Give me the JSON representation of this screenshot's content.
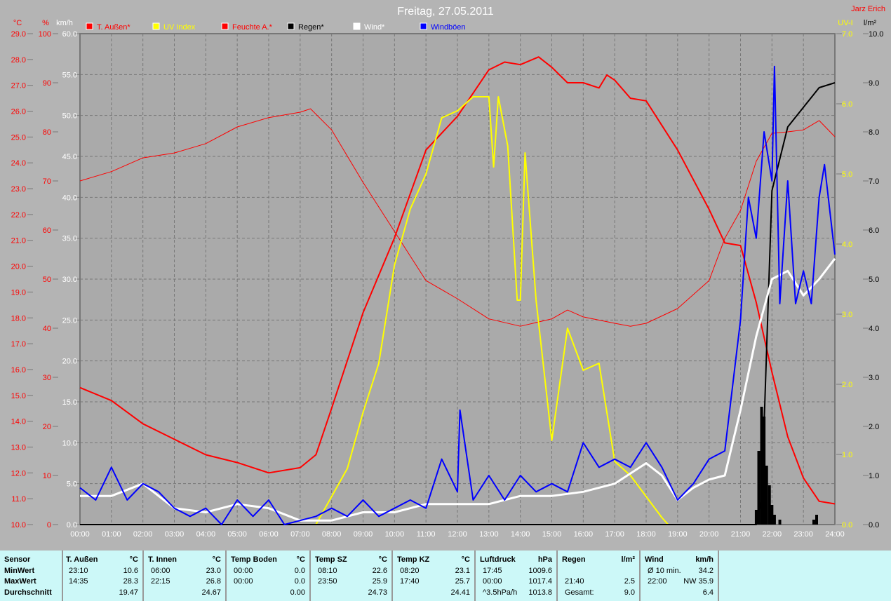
{
  "title": "Freitag, 27.05.2011",
  "user": "Jarz Erich",
  "legend": [
    {
      "label": "T. Außen*",
      "color": "#ff0000"
    },
    {
      "label": "UV Index",
      "color": "#ffff00"
    },
    {
      "label": "Feuchte A.*",
      "color": "#ff0000"
    },
    {
      "label": "Regen*",
      "color": "#000000"
    },
    {
      "label": "Wind*",
      "color": "#ffffff"
    },
    {
      "label": "Windböen",
      "color": "#0000ff"
    }
  ],
  "axes": {
    "temp_unit": "°C",
    "hum_unit": "%",
    "wind_unit": "km/h",
    "uv_unit": "UV-I",
    "rain_unit": "l/m²"
  },
  "chart_data": {
    "type": "line",
    "title": "Freitag, 27.05.2011",
    "x_ticks": [
      "00:00",
      "01:00",
      "02:00",
      "03:00",
      "04:00",
      "05:00",
      "06:00",
      "07:00",
      "08:00",
      "09:00",
      "10:00",
      "11:00",
      "12:00",
      "13:00",
      "14:00",
      "15:00",
      "16:00",
      "17:00",
      "18:00",
      "19:00",
      "20:00",
      "21:00",
      "22:00",
      "23:00",
      "24:00"
    ],
    "xlim": [
      0,
      24
    ],
    "axes_ranges": {
      "temp": [
        10,
        29
      ],
      "hum": [
        0,
        100
      ],
      "wind": [
        0,
        60
      ],
      "uv": [
        0,
        7
      ],
      "rain": [
        0,
        10
      ]
    },
    "grid": true,
    "series": [
      {
        "name": "T. Außen*",
        "axis": "temp",
        "color": "#ff0000",
        "width": 2,
        "x": [
          0,
          1,
          2,
          3,
          4,
          5,
          6,
          7,
          7.5,
          8,
          9,
          10,
          11,
          12,
          13,
          13.5,
          14,
          14.58,
          15,
          15.5,
          16,
          16.5,
          16.75,
          17,
          17.5,
          18,
          19,
          20,
          20.5,
          21,
          21.5,
          22,
          22.5,
          23,
          23.5,
          24
        ],
        "y": [
          15.3,
          14.8,
          13.9,
          13.3,
          12.7,
          12.4,
          12.0,
          12.2,
          12.7,
          14.5,
          18.2,
          21.1,
          24.5,
          25.8,
          27.6,
          27.9,
          27.8,
          28.1,
          27.7,
          27.1,
          27.1,
          26.9,
          27.4,
          27.2,
          26.5,
          26.4,
          24.5,
          22.2,
          20.9,
          20.8,
          18.6,
          15.9,
          13.4,
          11.8,
          10.9,
          10.8
        ]
      },
      {
        "name": "Feuchte A.*",
        "axis": "hum",
        "color": "#ff0000",
        "width": 1,
        "x": [
          0,
          1,
          2,
          3,
          4,
          5,
          6,
          7,
          7.33,
          8,
          9,
          10,
          11,
          12,
          13,
          14,
          15,
          15.5,
          16,
          17,
          17.5,
          18,
          19,
          20,
          20.5,
          21,
          21.5,
          22,
          22.5,
          23,
          23.5,
          24
        ],
        "y": [
          70,
          71.9,
          74.7,
          75.7,
          77.6,
          81,
          82.9,
          84,
          84.7,
          80.4,
          69.7,
          59.7,
          49.7,
          46,
          41.9,
          40.4,
          41.9,
          43.7,
          42.3,
          41,
          40.4,
          41,
          44,
          49.7,
          58.3,
          64,
          74,
          79.7,
          80,
          80.4,
          82.3,
          79
        ]
      },
      {
        "name": "UV Index",
        "axis": "uv",
        "color": "#ffff00",
        "width": 2,
        "x": [
          7.5,
          8,
          8.5,
          9,
          9.5,
          10,
          10.5,
          11,
          11.5,
          12,
          12.5,
          13,
          13.15,
          13.3,
          13.6,
          13.9,
          14,
          14.15,
          14.5,
          15,
          15.5,
          16,
          16.5,
          17,
          17.5,
          18,
          18.5,
          18.7
        ],
        "y": [
          0,
          0.4,
          0.8,
          1.6,
          2.3,
          3.7,
          4.5,
          5.0,
          5.8,
          5.9,
          6.1,
          6.1,
          5.1,
          6.1,
          5.4,
          3.2,
          3.2,
          5.3,
          3.2,
          1.2,
          2.8,
          2.2,
          2.3,
          0.9,
          0.7,
          0.4,
          0.1,
          0
        ]
      },
      {
        "name": "Regen*",
        "axis": "rain",
        "color": "#000000",
        "width": 2,
        "x": [
          0,
          21.5,
          21.67,
          22,
          22.5,
          23,
          23.5,
          24
        ],
        "y": [
          0,
          0,
          0.5,
          6.8,
          8.1,
          8.5,
          8.9,
          9.0
        ]
      },
      {
        "name": "Wind*",
        "axis": "wind",
        "color": "#ffffff",
        "width": 3,
        "x": [
          0,
          1,
          2,
          3,
          4,
          5,
          6,
          7,
          8,
          9,
          10,
          11,
          12,
          13,
          14,
          15,
          16,
          17,
          18,
          18.5,
          19,
          19.5,
          20,
          20.5,
          21,
          21.5,
          22,
          22.5,
          23,
          23.5,
          24
        ],
        "y": [
          3.5,
          3.5,
          5,
          2,
          1.5,
          2.5,
          2,
          0.5,
          0.5,
          1.5,
          1.5,
          2.5,
          2.5,
          2.5,
          3.5,
          3.5,
          4,
          5,
          7.5,
          6,
          3,
          4.5,
          5.5,
          6,
          14,
          23,
          30,
          31,
          28,
          30,
          32.5
        ]
      },
      {
        "name": "Windböen",
        "axis": "wind",
        "color": "#0000ff",
        "width": 2,
        "x": [
          0,
          0.5,
          1,
          1.5,
          2,
          2.5,
          3,
          3.5,
          4,
          4.5,
          5,
          5.5,
          6,
          6.5,
          7,
          7.5,
          8,
          8.5,
          9,
          9.5,
          10,
          10.5,
          11,
          11.5,
          12,
          12.08,
          12.5,
          13,
          13.5,
          14,
          14.5,
          15,
          15.5,
          16,
          16.5,
          17,
          17.5,
          18,
          18.5,
          19,
          19.5,
          20,
          20.5,
          21,
          21.25,
          21.5,
          21.75,
          22,
          22.08,
          22.25,
          22.5,
          22.75,
          23,
          23.25,
          23.5,
          23.67,
          24
        ],
        "y": [
          4.5,
          3,
          7,
          3,
          5,
          4,
          2,
          1,
          2,
          0,
          3,
          1,
          3,
          0,
          0.5,
          1,
          2,
          1,
          3,
          1,
          2,
          3,
          2,
          8,
          4,
          14,
          3,
          6,
          3,
          6,
          4,
          5,
          4,
          10,
          7,
          8,
          7,
          10,
          7,
          3,
          5,
          8,
          9,
          25,
          40,
          35,
          48,
          42,
          56,
          27,
          42,
          27,
          31,
          27,
          40,
          44,
          33
        ]
      }
    ],
    "bars": {
      "name": "Regen (Intervall)",
      "axis": "rain",
      "color": "#000000",
      "x": [
        21.5,
        21.58,
        21.67,
        21.75,
        21.83,
        21.92,
        22.0,
        22.08,
        22.25,
        23.33,
        23.42
      ],
      "y": [
        0.3,
        1.5,
        2.4,
        2.2,
        1.2,
        0.8,
        0.4,
        0.2,
        0.1,
        0.1,
        0.2
      ]
    }
  },
  "table": {
    "row_labels": [
      "Sensor",
      "MinWert",
      "MaxWert",
      "Durchschnitt"
    ],
    "columns": [
      {
        "name": "T. Außen",
        "unit": "°C",
        "rows": [
          [
            "23:10",
            "10.6"
          ],
          [
            "14:35",
            "28.3"
          ],
          [
            "",
            "19.47"
          ]
        ]
      },
      {
        "name": "T. Innen",
        "unit": "°C",
        "rows": [
          [
            "06:00",
            "23.0"
          ],
          [
            "22:15",
            "26.8"
          ],
          [
            "",
            "24.67"
          ]
        ]
      },
      {
        "name": "Temp Boden",
        "unit": "°C",
        "rows": [
          [
            "00:00",
            "0.0"
          ],
          [
            "00:00",
            "0.0"
          ],
          [
            "",
            "0.00"
          ]
        ]
      },
      {
        "name": "Temp SZ",
        "unit": "°C",
        "rows": [
          [
            "08:10",
            "22.6"
          ],
          [
            "23:50",
            "25.9"
          ],
          [
            "",
            "24.73"
          ]
        ]
      },
      {
        "name": "Temp KZ",
        "unit": "°C",
        "rows": [
          [
            "08:20",
            "23.1"
          ],
          [
            "17:40",
            "25.7"
          ],
          [
            "",
            "24.41"
          ]
        ]
      },
      {
        "name": "Luftdruck",
        "unit": "hPa",
        "rows": [
          [
            "17:45",
            "1009.6"
          ],
          [
            "00:00",
            "1017.4"
          ],
          [
            "^3.5hPa/h",
            "1013.8"
          ]
        ]
      },
      {
        "name": "Regen",
        "unit": "l/m²",
        "rows": [
          [
            "",
            ""
          ],
          [
            "21:40",
            "2.5"
          ],
          [
            "Gesamt:",
            "9.0"
          ]
        ]
      },
      {
        "name": "Wind",
        "unit": "km/h",
        "rows": [
          [
            "Ø 10 min.",
            "34.2"
          ],
          [
            "22:00",
            "NW 35.9"
          ],
          [
            "",
            "6.4"
          ]
        ]
      }
    ]
  }
}
